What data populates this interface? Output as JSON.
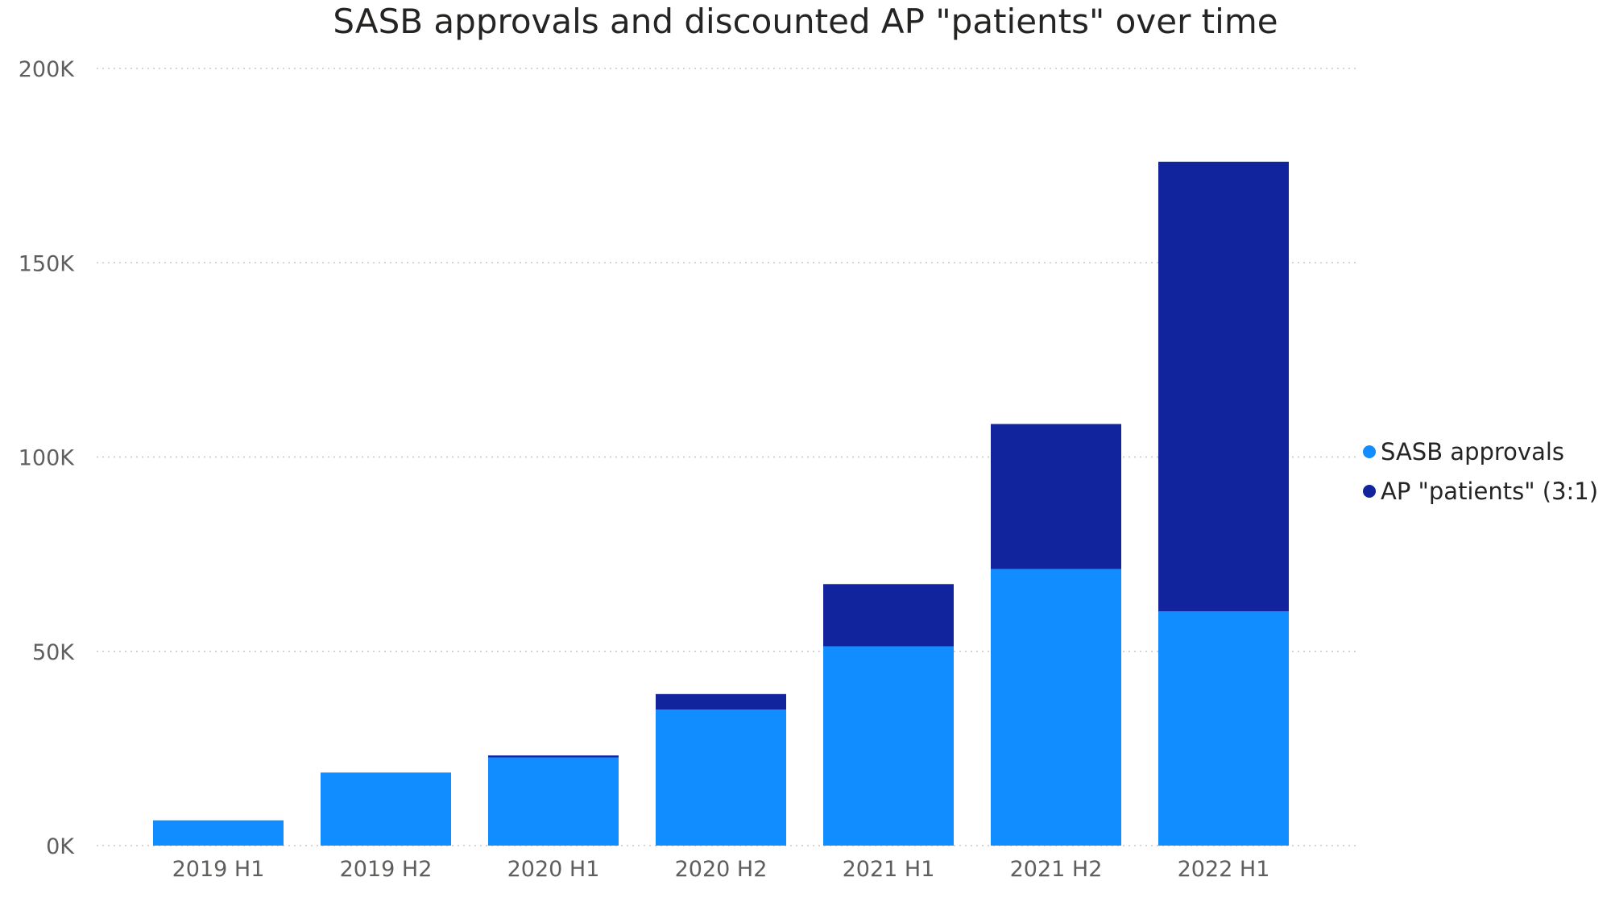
{
  "chart_data": {
    "type": "bar",
    "stacked": true,
    "title": "SASB approvals and discounted AP \"patients\" over time",
    "xlabel": "",
    "ylabel": "",
    "categories": [
      "2019 H1",
      "2019 H2",
      "2020 H1",
      "2020 H2",
      "2021 H1",
      "2021 H2",
      "2022 H1"
    ],
    "series": [
      {
        "name": "SASB approvals",
        "color": "#118dff",
        "values": [
          6500,
          18800,
          22700,
          35000,
          51300,
          71200,
          60300
        ]
      },
      {
        "name": "AP \"patients\" (3:1)",
        "color": "#12239e",
        "values": [
          0,
          0,
          500,
          4000,
          16000,
          37300,
          115700
        ]
      }
    ],
    "ylim": [
      0,
      200000
    ],
    "yticks": [
      0,
      50000,
      100000,
      150000,
      200000
    ],
    "ytick_labels": [
      "0K",
      "50K",
      "100K",
      "150K",
      "200K"
    ],
    "grid": true,
    "legend_position": "right"
  }
}
